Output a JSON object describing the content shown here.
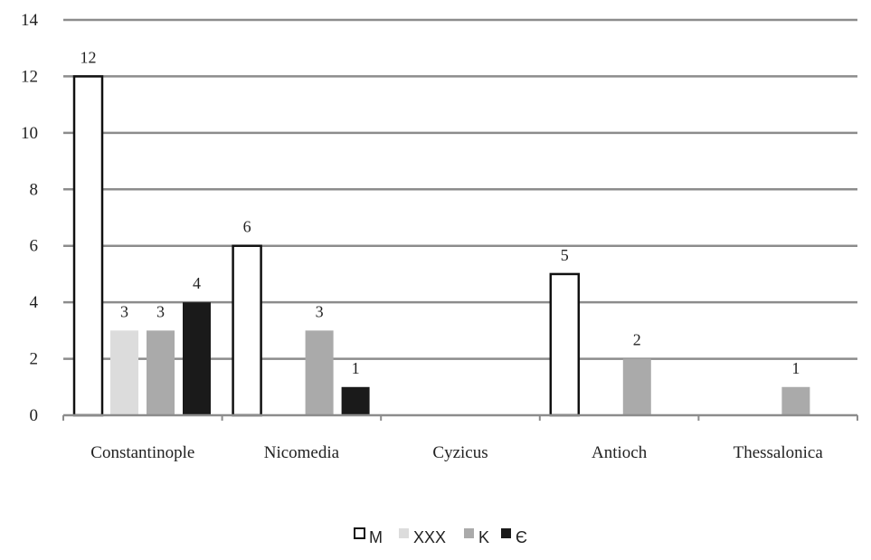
{
  "chart_data": {
    "type": "bar",
    "categories": [
      "Constantinople",
      "Nicomedia",
      "Cyzicus",
      "Antioch",
      "Thessalonica"
    ],
    "series": [
      {
        "name": "M",
        "values": [
          12,
          6,
          null,
          5,
          null
        ],
        "color": "#ffffff",
        "stroke": "#111111"
      },
      {
        "name": "XXX",
        "values": [
          3,
          null,
          null,
          null,
          null
        ],
        "color": "#dcdcdc",
        "stroke": "none"
      },
      {
        "name": "K",
        "values": [
          3,
          3,
          null,
          2,
          1
        ],
        "color": "#aaaaaa",
        "stroke": "none"
      },
      {
        "name": "Є",
        "values": [
          4,
          1,
          null,
          null,
          null
        ],
        "color": "#1a1a1a",
        "stroke": "none"
      }
    ],
    "y_ticks": [
      "0",
      "2",
      "4",
      "6",
      "8",
      "10",
      "12",
      "14"
    ],
    "ylim": [
      0,
      14
    ],
    "grid": true,
    "gridline_color": "#8c8c8c",
    "legend_position": "bottom-center"
  }
}
